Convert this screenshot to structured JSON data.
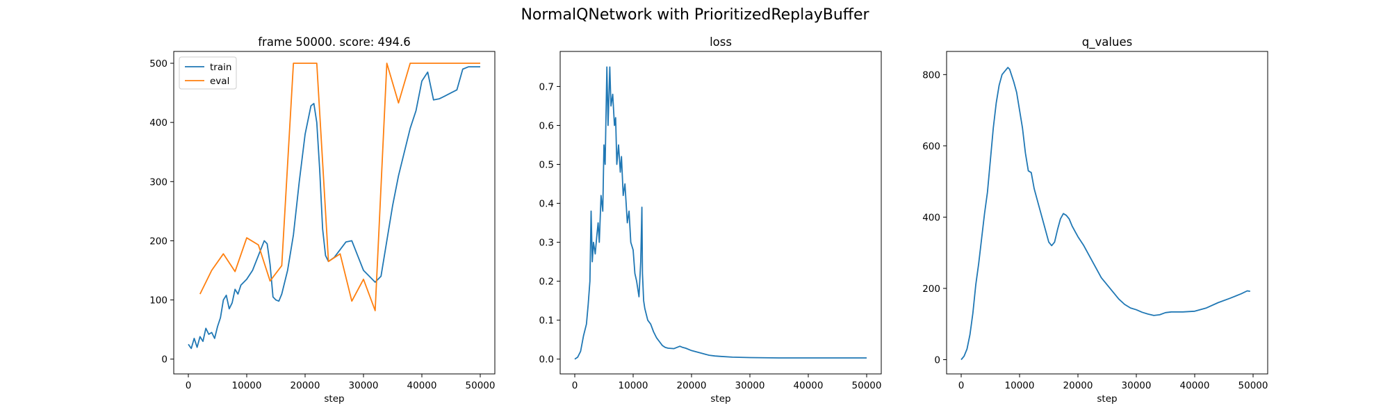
{
  "figure": {
    "title": "NormalQNetwork with PrioritizedReplayBuffer"
  },
  "colors": {
    "train": "#1f77b4",
    "eval": "#ff7f0e",
    "axis": "#000000"
  },
  "chart_data": [
    {
      "type": "line",
      "title": "frame 50000. score: 494.6",
      "xlabel": "step",
      "ylabel": "",
      "xlim": [
        -2500,
        52500
      ],
      "ylim": [
        -25,
        520
      ],
      "xticks": [
        0,
        10000,
        20000,
        30000,
        40000,
        50000
      ],
      "yticks": [
        0,
        100,
        200,
        300,
        400,
        500
      ],
      "grid": false,
      "legend": {
        "placement": "top-left",
        "entries": [
          "train",
          "eval"
        ]
      },
      "series": [
        {
          "name": "train",
          "color": "#1f77b4",
          "x": [
            0,
            500,
            1000,
            1500,
            2000,
            2500,
            3000,
            3500,
            4000,
            4500,
            5000,
            5500,
            6000,
            6500,
            7000,
            7500,
            8000,
            8500,
            9000,
            9500,
            10000,
            11000,
            12000,
            13000,
            13500,
            14000,
            14500,
            15000,
            15500,
            16000,
            17000,
            18000,
            19000,
            20000,
            21000,
            21500,
            22000,
            22500,
            23000,
            23500,
            24000,
            25000,
            26000,
            27000,
            28000,
            29000,
            30000,
            31000,
            32000,
            33000,
            34000,
            35000,
            36000,
            37000,
            38000,
            39000,
            40000,
            41000,
            42000,
            43000,
            44000,
            45000,
            46000,
            47000,
            48000,
            49000,
            50000
          ],
          "y": [
            25,
            18,
            35,
            20,
            38,
            30,
            52,
            42,
            45,
            35,
            55,
            70,
            100,
            108,
            85,
            95,
            118,
            110,
            125,
            130,
            135,
            150,
            175,
            200,
            195,
            160,
            105,
            100,
            98,
            110,
            150,
            210,
            300,
            380,
            428,
            432,
            400,
            320,
            220,
            175,
            165,
            172,
            185,
            198,
            200,
            175,
            150,
            140,
            130,
            140,
            200,
            260,
            310,
            350,
            390,
            420,
            470,
            485,
            438,
            440,
            445,
            450,
            455,
            490,
            494,
            494,
            494
          ]
        },
        {
          "name": "eval",
          "color": "#ff7f0e",
          "x": [
            2000,
            4000,
            6000,
            8000,
            10000,
            12000,
            14000,
            16000,
            18000,
            20000,
            22000,
            24000,
            26000,
            28000,
            30000,
            32000,
            34000,
            36000,
            38000,
            40000,
            42000,
            44000,
            46000,
            48000,
            50000
          ],
          "y": [
            110,
            150,
            178,
            148,
            205,
            193,
            132,
            158,
            500,
            500,
            500,
            165,
            178,
            98,
            135,
            82,
            500,
            433,
            500,
            500,
            500,
            500,
            500,
            500,
            500
          ]
        }
      ]
    },
    {
      "type": "line",
      "title": "loss",
      "xlabel": "step",
      "ylabel": "",
      "xlim": [
        -2500,
        52500
      ],
      "ylim": [
        -0.038,
        0.79
      ],
      "xticks": [
        0,
        10000,
        20000,
        30000,
        40000,
        50000
      ],
      "yticks": [
        0.0,
        0.1,
        0.2,
        0.3,
        0.4,
        0.5,
        0.6,
        0.7
      ],
      "ytick_labels": [
        "0.0",
        "0.1",
        "0.2",
        "0.3",
        "0.4",
        "0.5",
        "0.6",
        "0.7"
      ],
      "grid": false,
      "series": [
        {
          "name": "",
          "color": "#1f77b4",
          "x": [
            0,
            500,
            1000,
            1500,
            2000,
            2300,
            2600,
            2800,
            3000,
            3200,
            3500,
            3800,
            4000,
            4200,
            4500,
            4800,
            5000,
            5200,
            5500,
            5700,
            6000,
            6200,
            6500,
            6800,
            7000,
            7200,
            7500,
            7800,
            8000,
            8300,
            8600,
            9000,
            9300,
            9600,
            10000,
            10300,
            10600,
            11000,
            11300,
            11500,
            11600,
            11800,
            12000,
            12500,
            13000,
            13500,
            14000,
            14500,
            15000,
            15500,
            16000,
            17000,
            18000,
            18500,
            19000,
            20000,
            21000,
            22000,
            23000,
            24000,
            25000,
            27000,
            30000,
            35000,
            40000,
            45000,
            50000
          ],
          "y": [
            0.0,
            0.005,
            0.02,
            0.06,
            0.09,
            0.14,
            0.2,
            0.38,
            0.25,
            0.3,
            0.27,
            0.32,
            0.35,
            0.3,
            0.42,
            0.38,
            0.55,
            0.5,
            0.75,
            0.6,
            0.75,
            0.65,
            0.68,
            0.6,
            0.62,
            0.5,
            0.55,
            0.48,
            0.52,
            0.42,
            0.45,
            0.35,
            0.38,
            0.3,
            0.28,
            0.22,
            0.2,
            0.16,
            0.25,
            0.39,
            0.22,
            0.15,
            0.13,
            0.1,
            0.09,
            0.07,
            0.055,
            0.045,
            0.035,
            0.03,
            0.028,
            0.027,
            0.033,
            0.03,
            0.028,
            0.022,
            0.018,
            0.014,
            0.01,
            0.008,
            0.007,
            0.005,
            0.004,
            0.003,
            0.003,
            0.003,
            0.003
          ]
        }
      ]
    },
    {
      "type": "line",
      "title": "q_values",
      "xlabel": "step",
      "ylabel": "",
      "xlim": [
        -2500,
        52500
      ],
      "ylim": [
        -40,
        865
      ],
      "xticks": [
        0,
        10000,
        20000,
        30000,
        40000,
        50000
      ],
      "yticks": [
        0,
        200,
        400,
        600,
        800
      ],
      "grid": false,
      "series": [
        {
          "name": "",
          "color": "#1f77b4",
          "x": [
            0,
            500,
            1000,
            1500,
            2000,
            2500,
            3000,
            3500,
            4000,
            4500,
            5000,
            5500,
            6000,
            6500,
            7000,
            7500,
            8000,
            8300,
            8600,
            9000,
            9500,
            10000,
            10500,
            11000,
            11500,
            12000,
            12500,
            13000,
            13500,
            14000,
            14500,
            15000,
            15500,
            16000,
            16500,
            17000,
            17500,
            18000,
            18500,
            19000,
            19500,
            20000,
            21000,
            22000,
            23000,
            24000,
            25000,
            26000,
            27000,
            28000,
            29000,
            30000,
            31000,
            32000,
            33000,
            34000,
            35000,
            36000,
            38000,
            40000,
            42000,
            44000,
            46000,
            48000,
            49000,
            49500
          ],
          "y": [
            0,
            10,
            30,
            70,
            130,
            210,
            270,
            340,
            410,
            470,
            560,
            650,
            720,
            770,
            800,
            810,
            820,
            815,
            800,
            780,
            750,
            700,
            650,
            580,
            530,
            525,
            480,
            450,
            420,
            390,
            360,
            330,
            320,
            330,
            365,
            395,
            410,
            405,
            395,
            375,
            360,
            345,
            320,
            290,
            260,
            230,
            210,
            190,
            170,
            155,
            145,
            140,
            133,
            128,
            124,
            126,
            132,
            134,
            134,
            136,
            145,
            160,
            172,
            185,
            193,
            192
          ]
        }
      ]
    }
  ]
}
